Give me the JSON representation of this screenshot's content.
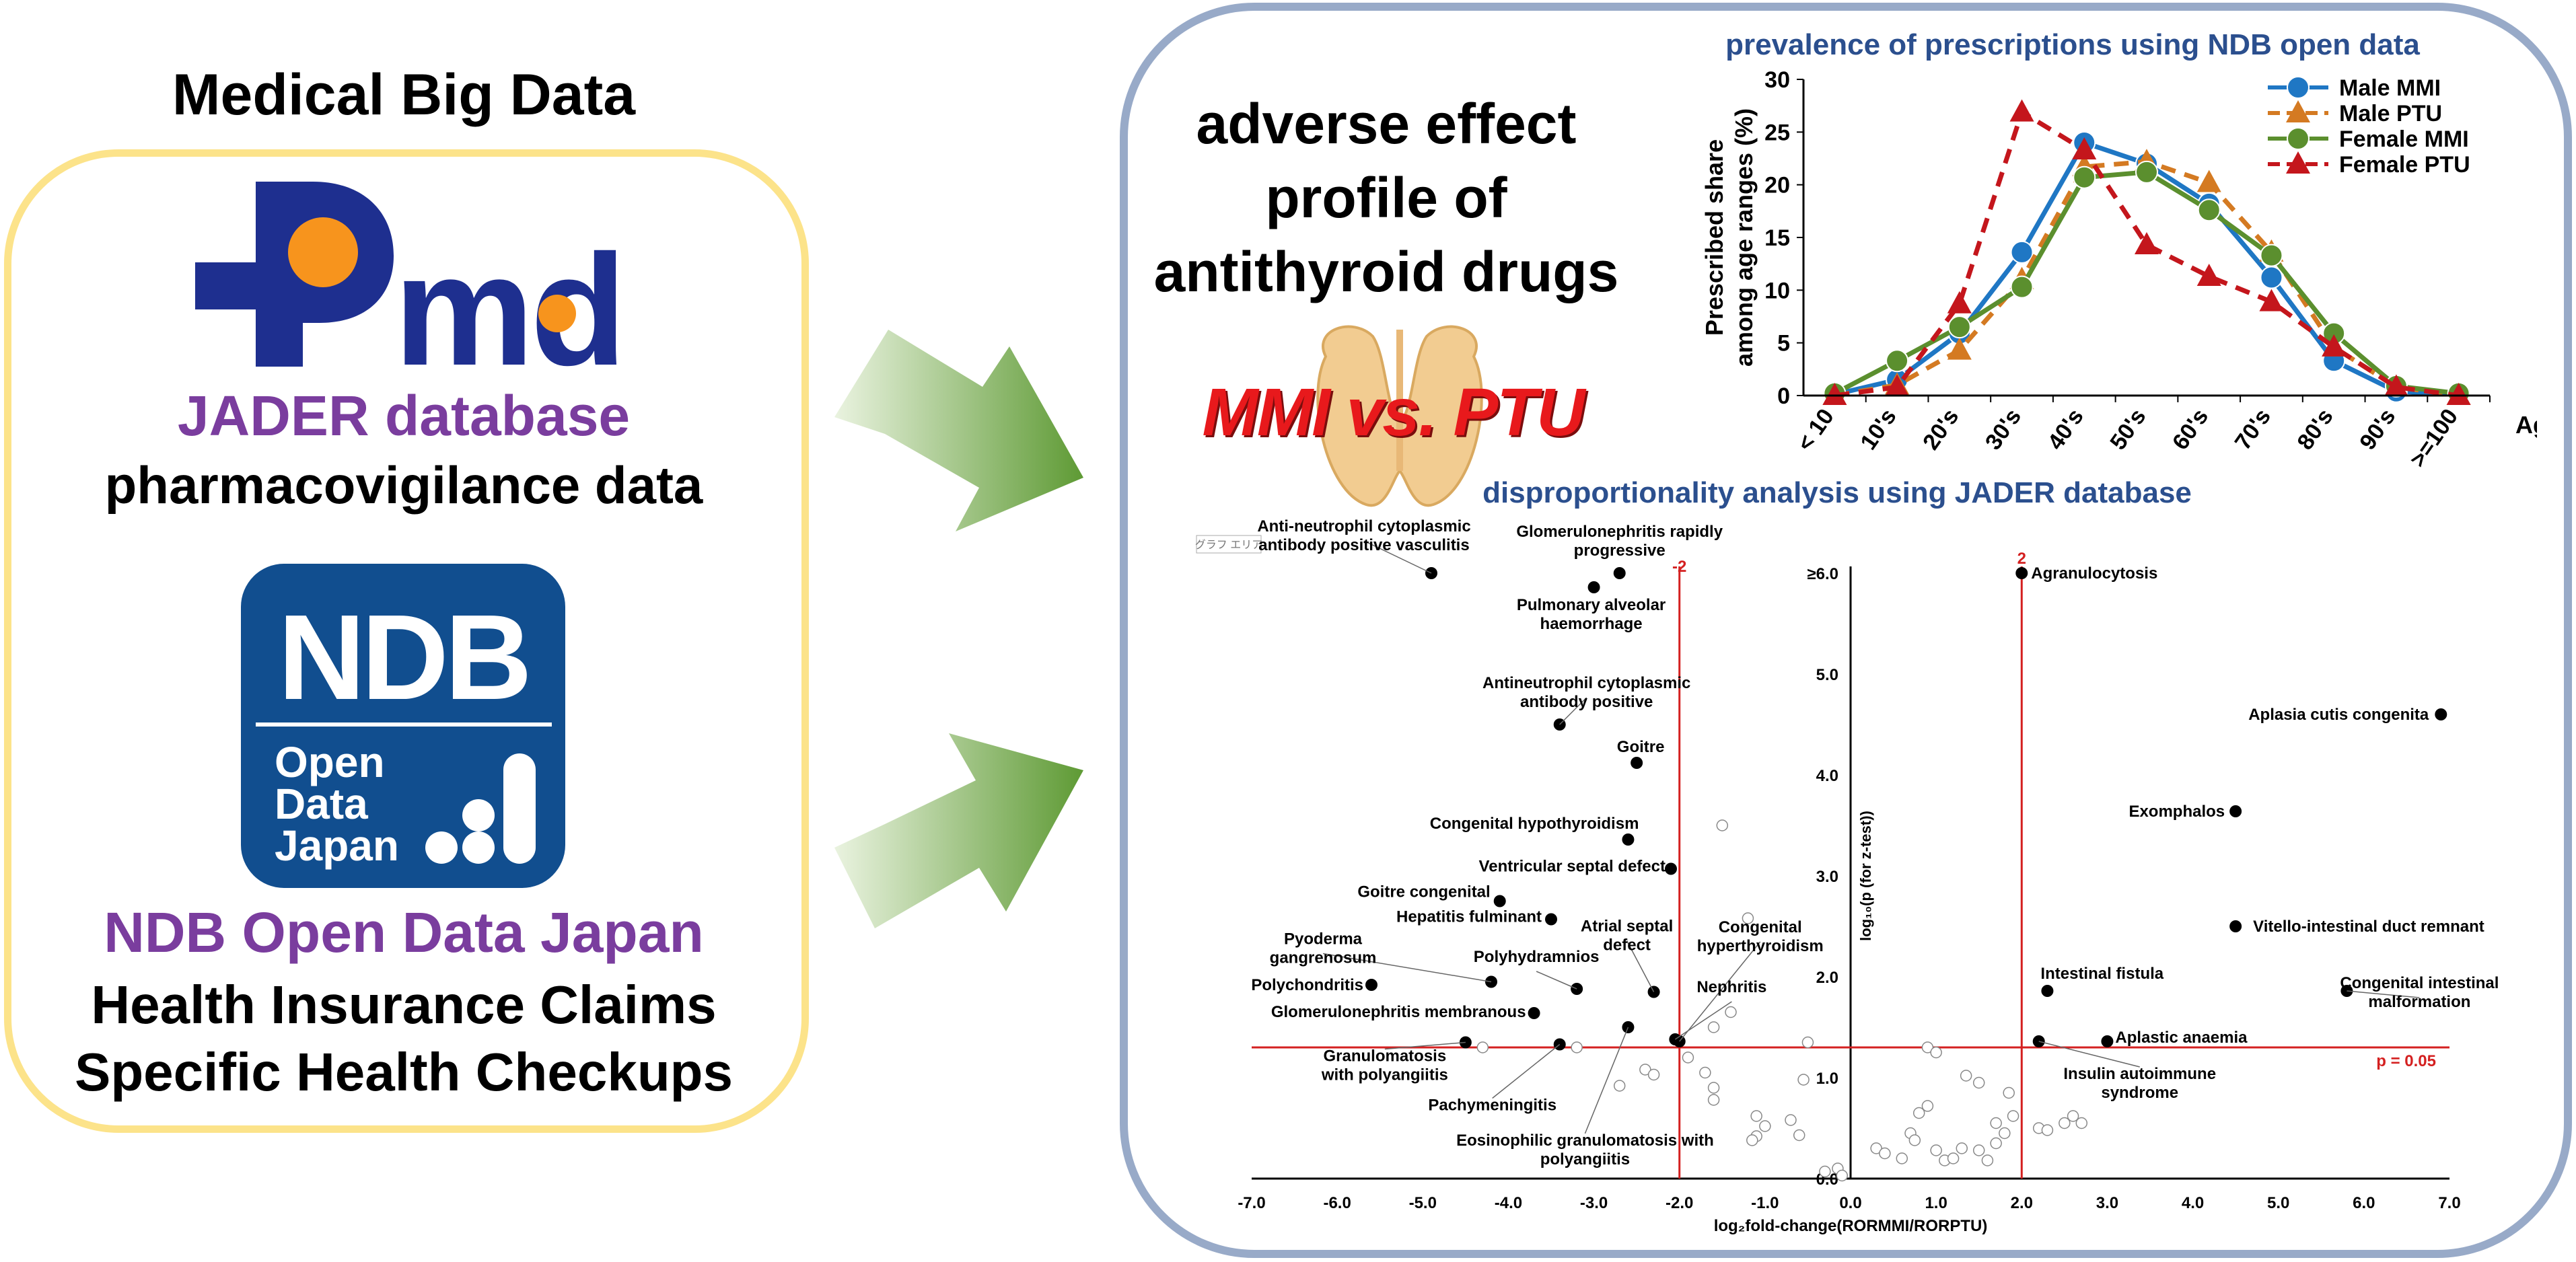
{
  "left_panel": {
    "heading": "Medical Big Data",
    "pmda_logo_text": "Pmda",
    "jader_title": "JADER database",
    "jader_subtitle": "pharmacovigilance data",
    "ndb_logo": {
      "big": "NDB",
      "line1": "Open",
      "line2": "Data",
      "line3": "Japan"
    },
    "ndb_title": "NDB Open Data Japan",
    "ndb_line1": "Health Insurance Claims",
    "ndb_line2": "Specific Health Checkups"
  },
  "right_panel": {
    "heading_lines": [
      "adverse effect",
      "profile of",
      "antithyroid drugs"
    ],
    "comparison": "MMI vs. PTU"
  },
  "colors": {
    "pmda_blue": "#1e2f8f",
    "pmda_orange": "#f7941d",
    "ndb_blue": "#114e8f",
    "purple": "#7a3d9e",
    "red": "#d42020",
    "male_mmi": "#1f77c4",
    "male_ptu": "#d47a22",
    "female_mmi": "#5b8f2e",
    "female_ptu": "#c4161c"
  },
  "chart_data": [
    {
      "type": "line",
      "title": "prevalence of prescriptions using NDB open data",
      "ylabel_lines": [
        "Prescribed share",
        "among age ranges (%)"
      ],
      "xlabel": "Age",
      "ylim": [
        0,
        30
      ],
      "yticks": [
        "0",
        "5",
        "10",
        "15",
        "20",
        "25",
        "30"
      ],
      "categories": [
        "< 10",
        "10's",
        "20's",
        "30's",
        "40's",
        "50's",
        "60's",
        "70's",
        "80's",
        "90's",
        ">=100"
      ],
      "legend_position": "top-right",
      "series": [
        {
          "name": "Male MMI",
          "color": "#1f77c4",
          "dash": "solid",
          "marker": "circle",
          "values": [
            0.1,
            1.5,
            5.9,
            13.6,
            24.0,
            22.0,
            18.2,
            11.2,
            3.3,
            0.4,
            0.1
          ]
        },
        {
          "name": "Male PTU",
          "color": "#d47a22",
          "dash": "dashed",
          "marker": "triangle",
          "values": [
            0,
            1.0,
            4.3,
            11.0,
            21.7,
            22.2,
            20.2,
            13.6,
            4.6,
            0.8,
            0
          ]
        },
        {
          "name": "Female MMI",
          "color": "#5b8f2e",
          "dash": "solid",
          "marker": "circle",
          "values": [
            0.2,
            3.3,
            6.5,
            10.3,
            20.7,
            21.2,
            17.6,
            13.3,
            5.9,
            0.9,
            0.2
          ]
        },
        {
          "name": "Female PTU",
          "color": "#c4161c",
          "dash": "dashed",
          "marker": "triangle",
          "values": [
            0,
            0.8,
            8.7,
            26.9,
            23.3,
            14.3,
            11.3,
            8.9,
            4.6,
            0.8,
            0
          ]
        }
      ]
    },
    {
      "type": "scatter",
      "title": "disproportionality analysis using JADER database",
      "xlabel": "log₂fold-change(RORMMI/RORPTU)",
      "ylabel": "log₁₀(p (for z-test))",
      "xlim": [
        -7,
        7
      ],
      "ylim": [
        0,
        6
      ],
      "xticks": [
        "-7.0",
        "-6.0",
        "-5.0",
        "-4.0",
        "-3.0",
        "-2.0",
        "-1.0",
        "0.0",
        "1.0",
        "2.0",
        "3.0",
        "4.0",
        "5.0",
        "6.0",
        "7.0"
      ],
      "yticks": [
        "0.0",
        "1.0",
        "2.0",
        "3.0",
        "4.0",
        "5.0",
        "≥6.0"
      ],
      "threshold_x_labels": [
        "-2",
        "2"
      ],
      "threshold_p_label": "p = 0.05",
      "threshold_p_y": 1.3,
      "chart_hint": "グラフ エリア",
      "labeled_points": [
        {
          "label": "Anti-neutrophil cytoplasmic\nantibody positive vasculitis",
          "x": -4.9,
          "y": 6.0
        },
        {
          "label": "Glomerulonephritis rapidly\nprogressive",
          "x": -2.7,
          "y": 6.0
        },
        {
          "label": "Pulmonary alveolar\nhaemorrhage",
          "x": -3.0,
          "y": 5.86
        },
        {
          "label": "Antineutrophil cytoplasmic\nantibody positive",
          "x": -3.4,
          "y": 4.5
        },
        {
          "label": "Goitre",
          "x": -2.5,
          "y": 4.12
        },
        {
          "label": "Congenital hypothyroidism",
          "x": -2.6,
          "y": 3.36
        },
        {
          "label": "Ventricular septal defect",
          "x": -2.1,
          "y": 3.07
        },
        {
          "label": "Goitre congenital",
          "x": -4.1,
          "y": 2.75
        },
        {
          "label": "Hepatitis fulminant",
          "x": -3.5,
          "y": 2.57
        },
        {
          "label": "Pyoderma\ngangrenosum",
          "x": -4.2,
          "y": 1.95
        },
        {
          "label": "Polyhydramnios",
          "x": -3.2,
          "y": 1.88
        },
        {
          "label": "Atrial septal\ndefect",
          "x": -2.3,
          "y": 1.85
        },
        {
          "label": "Polychondritis",
          "x": -5.6,
          "y": 1.92
        },
        {
          "label": "Glomerulonephritis membranous",
          "x": -3.7,
          "y": 1.64
        },
        {
          "label": "Congenital\nhyperthyroidism",
          "x": -2.0,
          "y": 1.36
        },
        {
          "label": "Nephritis",
          "x": -2.05,
          "y": 1.38
        },
        {
          "label": "Granulomatosis\nwith polyangiitis",
          "x": -4.5,
          "y": 1.35
        },
        {
          "label": "Pachymeningitis",
          "x": -3.4,
          "y": 1.33
        },
        {
          "label": "Eosinophilic granulomatosis with\npolyangiitis",
          "x": -2.6,
          "y": 1.5
        },
        {
          "label": "Agranulocytosis",
          "x": 2.0,
          "y": 6.0
        },
        {
          "label": "Aplasia cutis congenita",
          "x": 6.9,
          "y": 4.6
        },
        {
          "label": "Exomphalos",
          "x": 4.5,
          "y": 3.64
        },
        {
          "label": "Vitello-intestinal duct remnant",
          "x": 4.5,
          "y": 2.5
        },
        {
          "label": "Intestinal fistula",
          "x": 2.3,
          "y": 1.86
        },
        {
          "label": "Congenital intestinal\nmalformation",
          "x": 5.8,
          "y": 1.86
        },
        {
          "label": "Aplastic anaemia",
          "x": 3.0,
          "y": 1.36
        },
        {
          "label": "Insulin autoimmune\nsyndrome",
          "x": 2.2,
          "y": 1.36
        }
      ],
      "other_points": [
        [
          -1.5,
          3.5
        ],
        [
          -1.2,
          2.58
        ],
        [
          -1.4,
          1.65
        ],
        [
          -1.6,
          1.5
        ],
        [
          -0.5,
          1.35
        ],
        [
          -1.7,
          1.05
        ],
        [
          -1.1,
          0.62
        ],
        [
          -1.9,
          1.2
        ],
        [
          -2.4,
          1.08
        ],
        [
          -2.3,
          1.03
        ],
        [
          -2.7,
          0.92
        ],
        [
          -1.6,
          0.9
        ],
        [
          -1.6,
          0.78
        ],
        [
          -1.0,
          0.52
        ],
        [
          -1.1,
          0.42
        ],
        [
          -1.15,
          0.38
        ],
        [
          -0.7,
          0.58
        ],
        [
          -0.6,
          0.43
        ],
        [
          -0.55,
          0.98
        ],
        [
          -0.3,
          0.07
        ],
        [
          -0.15,
          0.1
        ],
        [
          -0.1,
          0.03
        ],
        [
          -3.2,
          1.3
        ],
        [
          -4.3,
          1.3
        ],
        [
          0.3,
          0.3
        ],
        [
          0.4,
          0.25
        ],
        [
          0.6,
          0.2
        ],
        [
          0.7,
          0.45
        ],
        [
          0.75,
          0.38
        ],
        [
          0.8,
          0.65
        ],
        [
          0.9,
          0.72
        ],
        [
          1.0,
          0.28
        ],
        [
          1.1,
          0.18
        ],
        [
          1.2,
          0.2
        ],
        [
          1.3,
          0.3
        ],
        [
          1.5,
          0.28
        ],
        [
          1.6,
          0.18
        ],
        [
          1.7,
          0.35
        ],
        [
          1.7,
          0.55
        ],
        [
          1.9,
          0.62
        ],
        [
          1.85,
          0.85
        ],
        [
          1.5,
          0.95
        ],
        [
          1.35,
          1.02
        ],
        [
          0.9,
          1.3
        ],
        [
          1.0,
          1.25
        ],
        [
          2.2,
          0.5
        ],
        [
          2.3,
          0.48
        ],
        [
          2.5,
          0.55
        ],
        [
          2.6,
          0.62
        ],
        [
          2.7,
          0.55
        ],
        [
          1.8,
          0.45
        ]
      ]
    }
  ]
}
